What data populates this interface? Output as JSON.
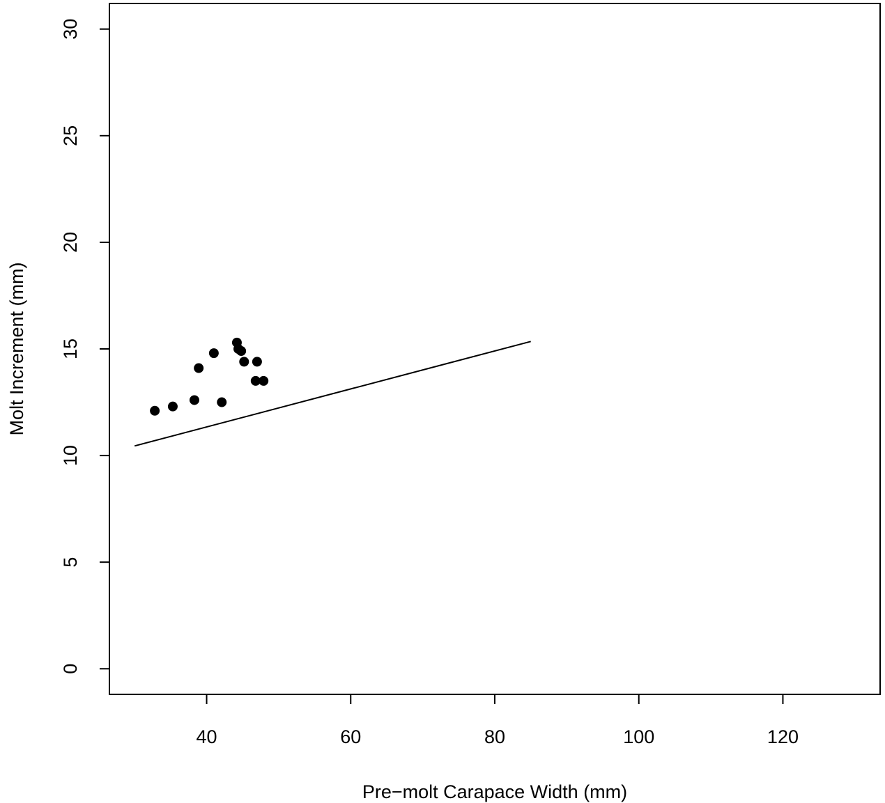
{
  "chart_data": {
    "type": "scatter",
    "title": "",
    "xlabel": "Pre−molt Carapace Width (mm)",
    "ylabel": "Molt Increment (mm)",
    "xlim": [
      26.5,
      133.5
    ],
    "ylim": [
      -1.2,
      31.2
    ],
    "x_ticks": [
      40,
      60,
      80,
      100,
      120
    ],
    "y_ticks": [
      0,
      5,
      10,
      15,
      20,
      25,
      30
    ],
    "grid": false,
    "legend": "none",
    "colors": {
      "points": "#000000",
      "line": "#000000",
      "axis": "#000000"
    },
    "series": [
      {
        "kind": "points",
        "x": [
          32.8,
          35.3,
          38.3,
          38.9,
          41.0,
          42.1,
          44.2,
          44.4,
          44.8,
          45.2,
          46.8,
          47.0,
          47.9
        ],
        "y": [
          12.1,
          12.3,
          12.6,
          14.1,
          14.8,
          12.5,
          15.3,
          15.0,
          14.9,
          14.4,
          13.5,
          14.4,
          13.5
        ]
      },
      {
        "kind": "line",
        "x": [
          30,
          85
        ],
        "y": [
          10.45,
          15.35
        ]
      }
    ]
  }
}
